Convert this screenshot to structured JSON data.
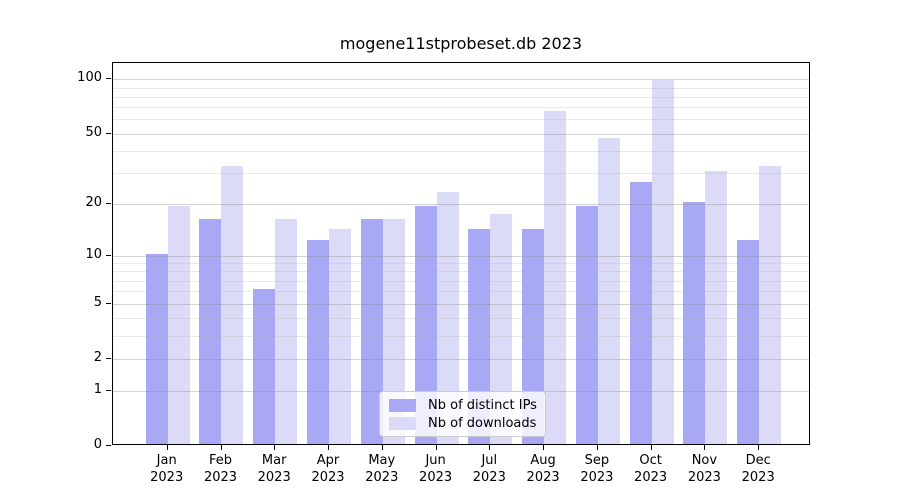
{
  "chart_data": {
    "type": "bar",
    "title": "mogene11stprobeset.db 2023",
    "categories": [
      "Jan 2023",
      "Feb 2023",
      "Mar 2023",
      "Apr 2023",
      "May 2023",
      "Jun 2023",
      "Jul 2023",
      "Aug 2023",
      "Sep 2023",
      "Oct 2023",
      "Nov 2023",
      "Dec 2023"
    ],
    "series": [
      {
        "key": "ips",
        "name": "Nb of distinct IPs",
        "color": "#a8a8f5",
        "values": [
          10,
          16,
          6,
          12,
          16,
          19,
          14,
          14,
          19,
          26,
          20,
          12
        ]
      },
      {
        "key": "downloads",
        "name": "Nb of downloads",
        "color": "#dbdbf8",
        "values": [
          19,
          32,
          16,
          14,
          16,
          23,
          17,
          65,
          46,
          97,
          30,
          32
        ]
      }
    ],
    "xlabel": "",
    "ylabel": "",
    "yscale": "log1p",
    "ylim": [
      0,
      123
    ],
    "yticks": [
      100,
      50,
      20,
      10,
      5,
      2,
      1,
      0
    ],
    "minor_gridlines": [
      3,
      4,
      6,
      7,
      8,
      9,
      30,
      40,
      60,
      70,
      80,
      90
    ],
    "grid": true,
    "legend_position": "lower center"
  }
}
